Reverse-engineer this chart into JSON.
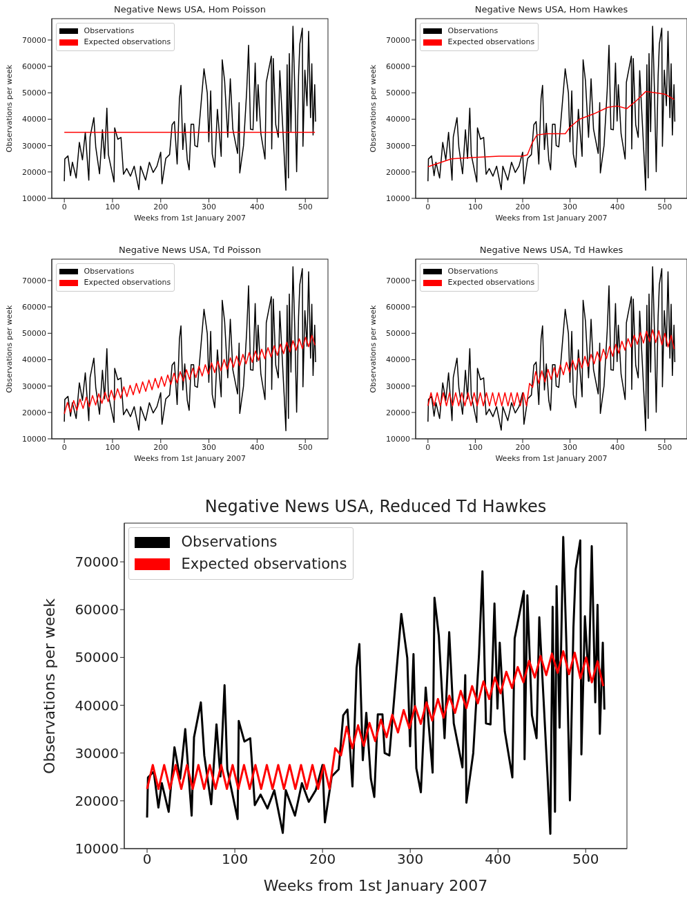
{
  "chart_data": [
    {
      "type": "line",
      "title": "Negative News USA, Hom Poisson",
      "xlabel": "Weeks from 1st January 2007",
      "ylabel": "Observations per week",
      "xlim": [
        -26,
        547
      ],
      "ylim": [
        10000,
        78100
      ],
      "xticks": [
        0,
        100,
        200,
        300,
        400,
        500
      ],
      "yticks": [
        10000,
        20000,
        30000,
        40000,
        50000,
        60000,
        70000
      ],
      "legend": "top left",
      "series": [
        {
          "name": "Observations",
          "color": "#000000",
          "x": [
            0,
            1,
            7.6,
            12.9,
            16.8,
            24.6,
            31.2,
            37.7,
            43.5,
            50.8,
            53.5,
            61.3,
            65.2,
            73.1,
            79.1,
            83.6,
            88.3,
            91.4,
            103.2,
            104.5,
            111,
            117.6,
            122.8,
            129.4,
            137.2,
            145,
            154.7,
            158.1,
            168.6,
            176.5,
            184.3,
            192.2,
            200,
            202.7,
            210.5,
            218.4,
            223.6,
            228.4,
            234.1,
            238.8,
            242,
            245.9,
            249.9,
            255.1,
            259,
            263,
            268.3,
            270.8,
            276.2,
            289.8,
            296.6,
            299.8,
            303.7,
            306.9,
            312.1,
            317.6,
            325.5,
            327.6,
            332.6,
            339.1,
            344.4,
            349.6,
            359.5,
            362.7,
            364,
            371.8,
            378.4,
            382.3,
            386.3,
            391.5,
            396,
            399.4,
            402,
            407.8,
            416.4,
            419,
            429.5,
            430.3,
            433.5,
            438.7,
            444,
            447.1,
            456.3,
            459.7,
            462.3,
            465,
            466.8,
            470.2,
            474.4,
            478.1,
            482,
            486,
            488.6,
            493.8,
            495.1,
            499.1,
            503.5,
            506.9,
            510.9,
            513.5,
            516.1,
            519.5,
            521.3
          ],
          "values": [
            16500,
            24900,
            26100,
            18600,
            23700,
            17700,
            31200,
            24600,
            35000,
            16900,
            33300,
            40600,
            29500,
            19300,
            36000,
            25100,
            44200,
            26600,
            16200,
            36700,
            32400,
            33100,
            19100,
            21300,
            18400,
            22200,
            13300,
            22200,
            16900,
            23700,
            19800,
            22200,
            27500,
            15500,
            25100,
            26600,
            37900,
            39100,
            23000,
            47800,
            52800,
            28500,
            38400,
            24600,
            20800,
            38100,
            38100,
            30000,
            29500,
            59100,
            49900,
            31400,
            50700,
            26800,
            21800,
            43700,
            25900,
            62500,
            54500,
            33100,
            55300,
            36200,
            27000,
            46300,
            19600,
            30000,
            50700,
            68000,
            36200,
            36000,
            61300,
            39300,
            53100,
            34500,
            24900,
            54000,
            63900,
            28700,
            63000,
            37900,
            33100,
            58400,
            25900,
            13100,
            60600,
            17700,
            64900,
            35300,
            75200,
            52100,
            20100,
            56200,
            68500,
            74500,
            29700,
            58600,
            45100,
            73300,
            40600,
            61000,
            34000,
            53100,
            39100
          ]
        },
        {
          "name": "Expected observations",
          "color": "#ff0000",
          "x": [
            0,
            520
          ],
          "values": [
            35000,
            35000
          ]
        }
      ]
    },
    {
      "type": "line",
      "title": "Negative News USA, Hom Hawkes",
      "xlabel": "Weeks from 1st January 2007",
      "ylabel": "Observations per week",
      "xlim": [
        -26,
        547
      ],
      "ylim": [
        10000,
        78100
      ],
      "xticks": [
        0,
        100,
        200,
        300,
        400,
        500
      ],
      "yticks": [
        10000,
        20000,
        30000,
        40000,
        50000,
        60000,
        70000
      ],
      "legend": "top left",
      "series": [
        {
          "name": "Observations",
          "color": "#000000",
          "x": [
            0,
            1,
            7.6,
            12.9,
            16.8,
            24.6,
            31.2,
            37.7,
            43.5,
            50.8,
            53.5,
            61.3,
            65.2,
            73.1,
            79.1,
            83.6,
            88.3,
            91.4,
            103.2,
            104.5,
            111,
            117.6,
            122.8,
            129.4,
            137.2,
            145,
            154.7,
            158.1,
            168.6,
            176.5,
            184.3,
            192.2,
            200,
            202.7,
            210.5,
            218.4,
            223.6,
            228.4,
            234.1,
            238.8,
            242,
            245.9,
            249.9,
            255.1,
            259,
            263,
            268.3,
            270.8,
            276.2,
            289.8,
            296.6,
            299.8,
            303.7,
            306.9,
            312.1,
            317.6,
            325.5,
            327.6,
            332.6,
            339.1,
            344.4,
            349.6,
            359.5,
            362.7,
            364,
            371.8,
            378.4,
            382.3,
            386.3,
            391.5,
            396,
            399.4,
            402,
            407.8,
            416.4,
            419,
            429.5,
            430.3,
            433.5,
            438.7,
            444,
            447.1,
            456.3,
            459.7,
            462.3,
            465,
            466.8,
            470.2,
            474.4,
            478.1,
            482,
            486,
            488.6,
            493.8,
            495.1,
            499.1,
            503.5,
            506.9,
            510.9,
            513.5,
            516.1,
            519.5,
            521.3
          ],
          "values": [
            16500,
            24900,
            26100,
            18600,
            23700,
            17700,
            31200,
            24600,
            35000,
            16900,
            33300,
            40600,
            29500,
            19300,
            36000,
            25100,
            44200,
            26600,
            16200,
            36700,
            32400,
            33100,
            19100,
            21300,
            18400,
            22200,
            13300,
            22200,
            16900,
            23700,
            19800,
            22200,
            27500,
            15500,
            25100,
            26600,
            37900,
            39100,
            23000,
            47800,
            52800,
            28500,
            38400,
            24600,
            20800,
            38100,
            38100,
            30000,
            29500,
            59100,
            49900,
            31400,
            50700,
            26800,
            21800,
            43700,
            25900,
            62500,
            54500,
            33100,
            55300,
            36200,
            27000,
            46300,
            19600,
            30000,
            50700,
            68000,
            36200,
            36000,
            61300,
            39300,
            53100,
            34500,
            24900,
            54000,
            63900,
            28700,
            63000,
            37900,
            33100,
            58400,
            25900,
            13100,
            60600,
            17700,
            64900,
            35300,
            75200,
            52100,
            20100,
            56200,
            68500,
            74500,
            29700,
            58600,
            45100,
            73300,
            40600,
            61000,
            34000,
            53100,
            39100
          ]
        },
        {
          "name": "Expected observations",
          "color": "#ff0000",
          "x": [
            0,
            50,
            100,
            150,
            200,
            210,
            220,
            230,
            250,
            290,
            300,
            320,
            350,
            380,
            400,
            420,
            440,
            460,
            480,
            500,
            520
          ],
          "values": [
            22000,
            25000,
            25500,
            26000,
            26000,
            26500,
            31000,
            34000,
            34500,
            34500,
            37000,
            40000,
            42000,
            44500,
            45000,
            44000,
            47000,
            50500,
            50000,
            49500,
            47500
          ]
        }
      ]
    },
    {
      "type": "line",
      "title": "Negative News USA, Td Poisson",
      "xlabel": "Weeks from 1st January 2007",
      "ylabel": "Observations per week",
      "xlim": [
        -26,
        547
      ],
      "ylim": [
        10000,
        78100
      ],
      "xticks": [
        0,
        100,
        200,
        300,
        400,
        500
      ],
      "yticks": [
        10000,
        20000,
        30000,
        40000,
        50000,
        60000,
        70000
      ],
      "legend": "top left",
      "series": [
        {
          "name": "Observations",
          "color": "#000000",
          "x": [
            0,
            1,
            7.6,
            12.9,
            16.8,
            24.6,
            31.2,
            37.7,
            43.5,
            50.8,
            53.5,
            61.3,
            65.2,
            73.1,
            79.1,
            83.6,
            88.3,
            91.4,
            103.2,
            104.5,
            111,
            117.6,
            122.8,
            129.4,
            137.2,
            145,
            154.7,
            158.1,
            168.6,
            176.5,
            184.3,
            192.2,
            200,
            202.7,
            210.5,
            218.4,
            223.6,
            228.4,
            234.1,
            238.8,
            242,
            245.9,
            249.9,
            255.1,
            259,
            263,
            268.3,
            270.8,
            276.2,
            289.8,
            296.6,
            299.8,
            303.7,
            306.9,
            312.1,
            317.6,
            325.5,
            327.6,
            332.6,
            339.1,
            344.4,
            349.6,
            359.5,
            362.7,
            364,
            371.8,
            378.4,
            382.3,
            386.3,
            391.5,
            396,
            399.4,
            402,
            407.8,
            416.4,
            419,
            429.5,
            430.3,
            433.5,
            438.7,
            444,
            447.1,
            456.3,
            459.7,
            462.3,
            465,
            466.8,
            470.2,
            474.4,
            478.1,
            482,
            486,
            488.6,
            493.8,
            495.1,
            499.1,
            503.5,
            506.9,
            510.9,
            513.5,
            516.1,
            519.5,
            521.3
          ],
          "values": [
            16500,
            24900,
            26100,
            18600,
            23700,
            17700,
            31200,
            24600,
            35000,
            16900,
            33300,
            40600,
            29500,
            19300,
            36000,
            25100,
            44200,
            26600,
            16200,
            36700,
            32400,
            33100,
            19100,
            21300,
            18400,
            22200,
            13300,
            22200,
            16900,
            23700,
            19800,
            22200,
            27500,
            15500,
            25100,
            26600,
            37900,
            39100,
            23000,
            47800,
            52800,
            28500,
            38400,
            24600,
            20800,
            38100,
            38100,
            30000,
            29500,
            59100,
            49900,
            31400,
            50700,
            26800,
            21800,
            43700,
            25900,
            62500,
            54500,
            33100,
            55300,
            36200,
            27000,
            46300,
            19600,
            30000,
            50700,
            68000,
            36200,
            36000,
            61300,
            39300,
            53100,
            34500,
            24900,
            54000,
            63900,
            28700,
            63000,
            37900,
            33100,
            58400,
            25900,
            13100,
            60600,
            17700,
            64900,
            35300,
            75200,
            52100,
            20100,
            56200,
            68500,
            74500,
            29700,
            58600,
            45100,
            73300,
            40600,
            61000,
            34000,
            53100,
            39100
          ]
        },
        {
          "name": "Expected observations",
          "color": "#ff0000",
          "x": [
            0,
            6.5,
            13,
            19.5,
            26,
            32.5,
            39,
            45.5,
            52,
            58.5,
            65,
            71.5,
            78,
            84.5,
            91,
            97.5,
            104,
            110.5,
            117,
            123.5,
            130,
            136.5,
            143,
            149.5,
            156,
            162.5,
            169,
            175.5,
            182,
            188.5,
            195,
            201.5,
            208,
            214.5,
            221,
            227.5,
            234,
            240.5,
            247,
            253.5,
            260,
            266.5,
            273,
            279.5,
            286,
            292.5,
            299,
            305.5,
            312,
            318.5,
            325,
            331.5,
            338,
            344.5,
            351,
            357.5,
            364,
            370.5,
            377,
            383.5,
            390,
            396.5,
            403,
            409.5,
            416,
            422.5,
            429,
            435.5,
            442,
            448.5,
            455,
            461.5,
            468,
            474.5,
            481,
            487.5,
            494,
            500.5,
            507,
            513.5,
            520
          ],
          "values": [
            19500,
            23800,
            20100,
            24500,
            20800,
            25100,
            21500,
            25800,
            22100,
            26400,
            22800,
            27100,
            23400,
            27700,
            24100,
            28400,
            24700,
            29000,
            25400,
            29700,
            26000,
            30300,
            26700,
            31000,
            27300,
            31600,
            28000,
            32300,
            28600,
            32900,
            29300,
            33600,
            29900,
            34200,
            30600,
            34900,
            31200,
            35500,
            31900,
            36200,
            32500,
            36800,
            33200,
            37500,
            33800,
            38100,
            34500,
            38800,
            35100,
            39400,
            35800,
            40100,
            36400,
            40700,
            37100,
            41400,
            37700,
            42000,
            38400,
            42700,
            39000,
            43300,
            39700,
            44000,
            40300,
            44600,
            41000,
            45300,
            41600,
            45900,
            42300,
            46600,
            42900,
            47200,
            43600,
            47900,
            44200,
            48500,
            44900,
            49200,
            45500
          ]
        }
      ]
    },
    {
      "type": "line",
      "title": "Negative News USA, Td Hawkes",
      "xlabel": "Weeks from 1st January 2007",
      "ylabel": "Observations per week",
      "xlim": [
        -26,
        547
      ],
      "ylim": [
        10000,
        78100
      ],
      "xticks": [
        0,
        100,
        200,
        300,
        400,
        500
      ],
      "yticks": [
        10000,
        20000,
        30000,
        40000,
        50000,
        60000,
        70000
      ],
      "legend": "top left",
      "series": [
        {
          "name": "Observations",
          "color": "#000000",
          "x": [
            0,
            1,
            7.6,
            12.9,
            16.8,
            24.6,
            31.2,
            37.7,
            43.5,
            50.8,
            53.5,
            61.3,
            65.2,
            73.1,
            79.1,
            83.6,
            88.3,
            91.4,
            103.2,
            104.5,
            111,
            117.6,
            122.8,
            129.4,
            137.2,
            145,
            154.7,
            158.1,
            168.6,
            176.5,
            184.3,
            192.2,
            200,
            202.7,
            210.5,
            218.4,
            223.6,
            228.4,
            234.1,
            238.8,
            242,
            245.9,
            249.9,
            255.1,
            259,
            263,
            268.3,
            270.8,
            276.2,
            289.8,
            296.6,
            299.8,
            303.7,
            306.9,
            312.1,
            317.6,
            325.5,
            327.6,
            332.6,
            339.1,
            344.4,
            349.6,
            359.5,
            362.7,
            364,
            371.8,
            378.4,
            382.3,
            386.3,
            391.5,
            396,
            399.4,
            402,
            407.8,
            416.4,
            419,
            429.5,
            430.3,
            433.5,
            438.7,
            444,
            447.1,
            456.3,
            459.7,
            462.3,
            465,
            466.8,
            470.2,
            474.4,
            478.1,
            482,
            486,
            488.6,
            493.8,
            495.1,
            499.1,
            503.5,
            506.9,
            510.9,
            513.5,
            516.1,
            519.5,
            521.3
          ],
          "values": [
            16500,
            24900,
            26100,
            18600,
            23700,
            17700,
            31200,
            24600,
            35000,
            16900,
            33300,
            40600,
            29500,
            19300,
            36000,
            25100,
            44200,
            26600,
            16200,
            36700,
            32400,
            33100,
            19100,
            21300,
            18400,
            22200,
            13300,
            22200,
            16900,
            23700,
            19800,
            22200,
            27500,
            15500,
            25100,
            26600,
            37900,
            39100,
            23000,
            47800,
            52800,
            28500,
            38400,
            24600,
            20800,
            38100,
            38100,
            30000,
            29500,
            59100,
            49900,
            31400,
            50700,
            26800,
            21800,
            43700,
            25900,
            62500,
            54500,
            33100,
            55300,
            36200,
            27000,
            46300,
            19600,
            30000,
            50700,
            68000,
            36200,
            36000,
            61300,
            39300,
            53100,
            34500,
            24900,
            54000,
            63900,
            28700,
            63000,
            37900,
            33100,
            58400,
            25900,
            13100,
            60600,
            17700,
            64900,
            35300,
            75200,
            52100,
            20100,
            56200,
            68500,
            74500,
            29700,
            58600,
            45100,
            73300,
            40600,
            61000,
            34000,
            53100,
            39100
          ]
        },
        {
          "name": "Expected observations",
          "color": "#ff0000",
          "x": [
            0,
            6.5,
            13,
            19.5,
            26,
            32.5,
            39,
            45.5,
            52,
            58.5,
            65,
            71.5,
            78,
            84.5,
            91,
            97.5,
            104,
            110.5,
            117,
            123.5,
            130,
            136.5,
            143,
            149.5,
            156,
            162.5,
            169,
            175.5,
            182,
            188.5,
            195,
            201.5,
            208,
            214.5,
            221,
            227.5,
            234,
            240.5,
            247,
            253.5,
            260,
            266.5,
            273,
            279.5,
            286,
            292.5,
            299,
            305.5,
            312,
            318.5,
            325,
            331.5,
            338,
            344.5,
            351,
            357.5,
            364,
            370.5,
            377,
            383.5,
            390,
            396.5,
            403,
            409.5,
            416,
            422.5,
            429,
            435.5,
            442,
            448.5,
            455,
            461.5,
            468,
            474.5,
            481,
            487.5,
            494,
            500.5,
            507,
            513.5,
            520
          ],
          "values": [
            22500,
            27500,
            22500,
            27500,
            22500,
            27500,
            22500,
            27500,
            22500,
            27500,
            22500,
            27500,
            22500,
            27500,
            22500,
            27500,
            22500,
            27500,
            22500,
            27500,
            22500,
            27500,
            22500,
            27500,
            22500,
            27500,
            22500,
            27500,
            22500,
            27500,
            22500,
            27500,
            22500,
            31000,
            29500,
            35500,
            31000,
            35800,
            31500,
            36300,
            32500,
            37000,
            33300,
            38000,
            34300,
            39000,
            35200,
            39800,
            36100,
            40600,
            36800,
            41300,
            37400,
            42000,
            38400,
            43000,
            39400,
            44000,
            40400,
            45000,
            41300,
            45800,
            42500,
            47000,
            43600,
            48000,
            44800,
            49300,
            45800,
            50300,
            46300,
            50800,
            46800,
            51300,
            46500,
            51000,
            45600,
            50000,
            44800,
            49200,
            44000
          ]
        }
      ]
    },
    {
      "type": "line",
      "title": "Negative News USA, Reduced Td Hawkes",
      "xlabel": "Weeks from 1st January 2007",
      "ylabel": "Observations per week",
      "xlim": [
        -26,
        547
      ],
      "ylim": [
        10000,
        78100
      ],
      "xticks": [
        0,
        100,
        200,
        300,
        400,
        500
      ],
      "yticks": [
        10000,
        20000,
        30000,
        40000,
        50000,
        60000,
        70000
      ],
      "legend": "top left",
      "series": [
        {
          "name": "Observations",
          "color": "#000000",
          "x": [
            0,
            1,
            7.6,
            12.9,
            16.8,
            24.6,
            31.2,
            37.7,
            43.5,
            50.8,
            53.5,
            61.3,
            65.2,
            73.1,
            79.1,
            83.6,
            88.3,
            91.4,
            103.2,
            104.5,
            111,
            117.6,
            122.8,
            129.4,
            137.2,
            145,
            154.7,
            158.1,
            168.6,
            176.5,
            184.3,
            192.2,
            200,
            202.7,
            210.5,
            218.4,
            223.6,
            228.4,
            234.1,
            238.8,
            242,
            245.9,
            249.9,
            255.1,
            259,
            263,
            268.3,
            270.8,
            276.2,
            289.8,
            296.6,
            299.8,
            303.7,
            306.9,
            312.1,
            317.6,
            325.5,
            327.6,
            332.6,
            339.1,
            344.4,
            349.6,
            359.5,
            362.7,
            364,
            371.8,
            378.4,
            382.3,
            386.3,
            391.5,
            396,
            399.4,
            402,
            407.8,
            416.4,
            419,
            429.5,
            430.3,
            433.5,
            438.7,
            444,
            447.1,
            456.3,
            459.7,
            462.3,
            465,
            466.8,
            470.2,
            474.4,
            478.1,
            482,
            486,
            488.6,
            493.8,
            495.1,
            499.1,
            503.5,
            506.9,
            510.9,
            513.5,
            516.1,
            519.5,
            521.3
          ],
          "values": [
            16500,
            24900,
            26100,
            18600,
            23700,
            17700,
            31200,
            24600,
            35000,
            16900,
            33300,
            40600,
            29500,
            19300,
            36000,
            25100,
            44200,
            26600,
            16200,
            36700,
            32400,
            33100,
            19100,
            21300,
            18400,
            22200,
            13300,
            22200,
            16900,
            23700,
            19800,
            22200,
            27500,
            15500,
            25100,
            26600,
            37900,
            39100,
            23000,
            47800,
            52800,
            28500,
            38400,
            24600,
            20800,
            38100,
            38100,
            30000,
            29500,
            59100,
            49900,
            31400,
            50700,
            26800,
            21800,
            43700,
            25900,
            62500,
            54500,
            33100,
            55300,
            36200,
            27000,
            46300,
            19600,
            30000,
            50700,
            68000,
            36200,
            36000,
            61300,
            39300,
            53100,
            34500,
            24900,
            54000,
            63900,
            28700,
            63000,
            37900,
            33100,
            58400,
            25900,
            13100,
            60600,
            17700,
            64900,
            35300,
            75200,
            52100,
            20100,
            56200,
            68500,
            74500,
            29700,
            58600,
            45100,
            73300,
            40600,
            61000,
            34000,
            53100,
            39100
          ]
        },
        {
          "name": "Expected observations",
          "color": "#ff0000",
          "x": [
            0,
            6.5,
            13,
            19.5,
            26,
            32.5,
            39,
            45.5,
            52,
            58.5,
            65,
            71.5,
            78,
            84.5,
            91,
            97.5,
            104,
            110.5,
            117,
            123.5,
            130,
            136.5,
            143,
            149.5,
            156,
            162.5,
            169,
            175.5,
            182,
            188.5,
            195,
            201.5,
            208,
            214.5,
            221,
            227.5,
            234,
            240.5,
            247,
            253.5,
            260,
            266.5,
            273,
            279.5,
            286,
            292.5,
            299,
            305.5,
            312,
            318.5,
            325,
            331.5,
            338,
            344.5,
            351,
            357.5,
            364,
            370.5,
            377,
            383.5,
            390,
            396.5,
            403,
            409.5,
            416,
            422.5,
            429,
            435.5,
            442,
            448.5,
            455,
            461.5,
            468,
            474.5,
            481,
            487.5,
            494,
            500.5,
            507,
            513.5,
            520
          ],
          "values": [
            22500,
            27500,
            22500,
            27500,
            22500,
            27500,
            22500,
            27500,
            22500,
            27500,
            22500,
            27500,
            22500,
            27500,
            22500,
            27500,
            22500,
            27500,
            22500,
            27500,
            22500,
            27500,
            22500,
            27500,
            22500,
            27500,
            22500,
            27500,
            22500,
            27500,
            22500,
            27500,
            22500,
            31000,
            29500,
            35500,
            31000,
            35800,
            31500,
            36300,
            32500,
            37000,
            33300,
            38000,
            34300,
            39000,
            35200,
            39800,
            36100,
            40600,
            36800,
            41300,
            37400,
            42000,
            38400,
            43000,
            39400,
            44000,
            40400,
            45000,
            41300,
            45800,
            42500,
            47000,
            43600,
            48000,
            44800,
            49300,
            45800,
            50300,
            46300,
            50800,
            46800,
            51300,
            46500,
            51000,
            45600,
            50000,
            44800,
            49200,
            44000
          ]
        }
      ]
    }
  ]
}
